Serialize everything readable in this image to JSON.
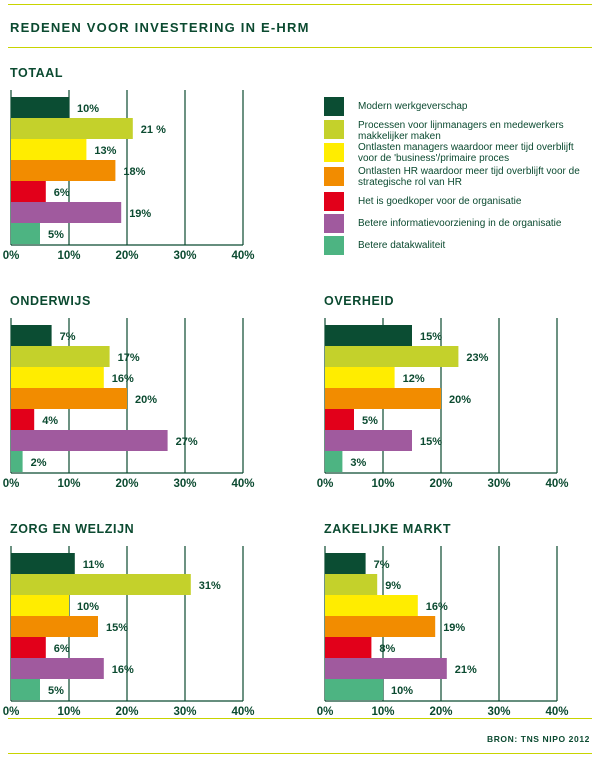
{
  "title": "REDENEN VOOR INVESTERING IN E-HRM",
  "source": "BRON: TNS NIPO 2012",
  "colors": [
    "#0b4d33",
    "#c4d12b",
    "#ffed00",
    "#f28c00",
    "#e2001a",
    "#a05a9e",
    "#4db482"
  ],
  "legend": [
    "Modern werkgeverschap",
    "Processen voor lijnmanagers en medewerkers makkelijker maken",
    "Ontlasten managers waardoor meer tijd overblijft voor de 'business'/primaire proces",
    "Ontlasten HR waardoor meer tijd overblijft voor de strategische rol van HR",
    "Het is goedkoper voor de organisatie",
    "Betere informatievoorziening in de organisatie",
    "Betere datakwaliteit"
  ],
  "chart_data": [
    {
      "type": "bar",
      "title": "TOTAAL",
      "values": [
        10,
        21,
        13,
        18,
        6,
        19,
        5
      ],
      "labels": [
        "10%",
        "21 %",
        "13%",
        "18%",
        "6%",
        "19%",
        "5%"
      ],
      "ticks": [
        "0%",
        "10%",
        "20%",
        "30%",
        "40%"
      ],
      "xlim": [
        0,
        40
      ]
    },
    {
      "type": "bar",
      "title": "ONDERWIJS",
      "values": [
        7,
        17,
        16,
        20,
        4,
        27,
        2
      ],
      "labels": [
        "7%",
        "17%",
        "16%",
        "20%",
        "4%",
        "27%",
        "2%"
      ],
      "ticks": [
        "0%",
        "10%",
        "20%",
        "30%",
        "40%"
      ],
      "xlim": [
        0,
        40
      ]
    },
    {
      "type": "bar",
      "title": "OVERHEID",
      "values": [
        15,
        23,
        12,
        20,
        5,
        15,
        3
      ],
      "labels": [
        "15%",
        "23%",
        "12%",
        "20%",
        "5%",
        "15%",
        "3%"
      ],
      "ticks": [
        "0%",
        "10%",
        "20%",
        "30%",
        "40%"
      ],
      "xlim": [
        0,
        40
      ]
    },
    {
      "type": "bar",
      "title": "ZORG EN WELZIJN",
      "values": [
        11,
        31,
        10,
        15,
        6,
        16,
        5
      ],
      "labels": [
        "11%",
        "31%",
        "10%",
        "15%",
        "6%",
        "16%",
        "5%"
      ],
      "ticks": [
        "0%",
        "10%",
        "20%",
        "30%",
        "40%"
      ],
      "xlim": [
        0,
        40
      ]
    },
    {
      "type": "bar",
      "title": "ZAKELIJKE MARKT",
      "values": [
        7,
        9,
        16,
        19,
        8,
        21,
        10
      ],
      "labels": [
        "7%",
        "9%",
        "16%",
        "19%",
        "8%",
        "21%",
        "10%"
      ],
      "ticks": [
        "0%",
        "10%",
        "20%",
        "30%",
        "40%"
      ],
      "xlim": [
        0,
        40
      ]
    }
  ]
}
